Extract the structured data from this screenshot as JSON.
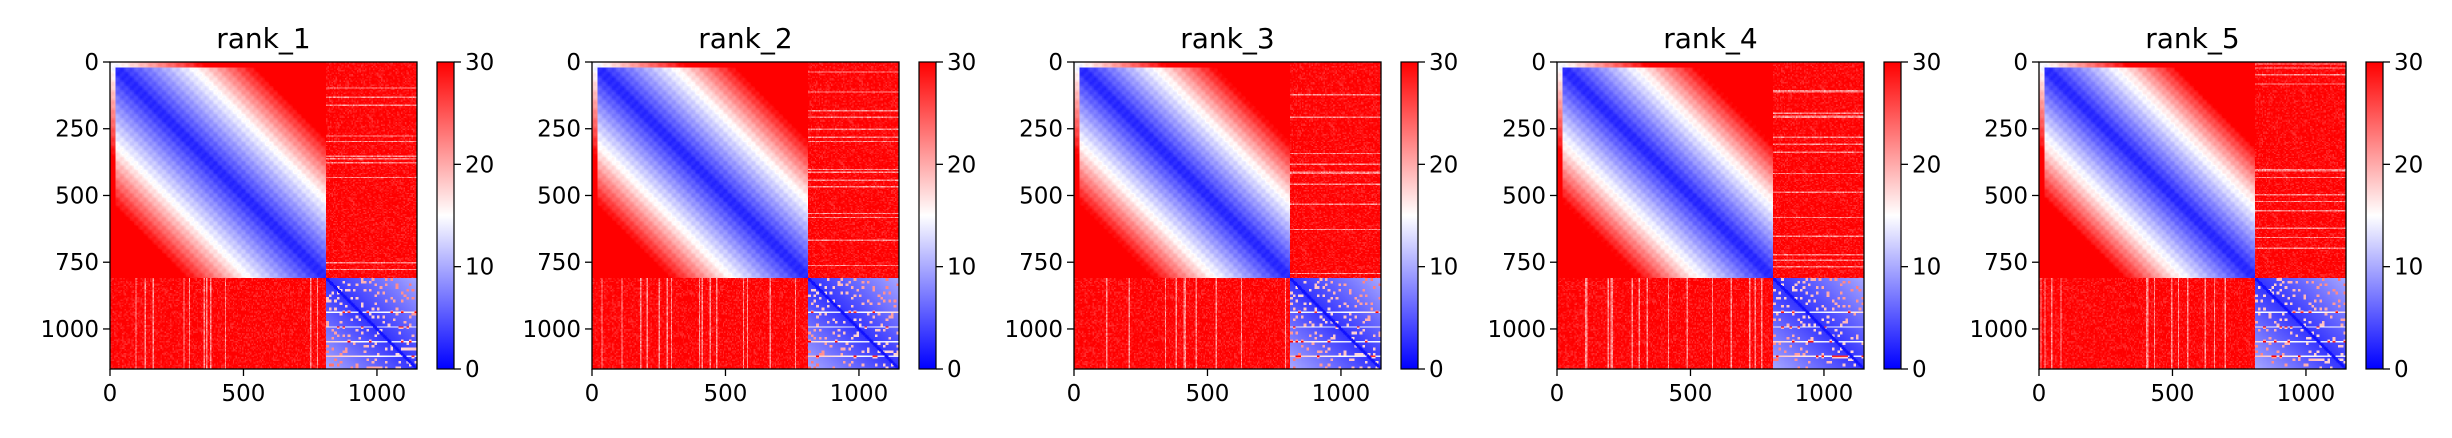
{
  "figure": {
    "panel_titles": [
      "rank_1",
      "rank_2",
      "rank_3",
      "rank_4",
      "rank_5"
    ]
  },
  "chart_data": [
    {
      "type": "heatmap",
      "title": "rank_1",
      "x_ticks": [
        0,
        500,
        1000
      ],
      "y_ticks": [
        0,
        250,
        500,
        750,
        1000
      ],
      "x_range": [
        0,
        1150
      ],
      "y_range": [
        0,
        1150
      ],
      "matrix_size": 1150,
      "block_boundary": 810,
      "colorbar": {
        "min": 0,
        "max": 30,
        "ticks": [
          0,
          10,
          20,
          30
        ],
        "colormap": "bwr"
      },
      "structure": "low distance within first block (0-810) growing away from diagonal, high distance between blocks, low values within second block (810-1150)"
    },
    {
      "type": "heatmap",
      "title": "rank_2",
      "x_ticks": [
        0,
        500,
        1000
      ],
      "y_ticks": [
        0,
        250,
        500,
        750,
        1000
      ],
      "x_range": [
        0,
        1150
      ],
      "y_range": [
        0,
        1150
      ],
      "matrix_size": 1150,
      "block_boundary": 810,
      "colorbar": {
        "min": 0,
        "max": 30,
        "ticks": [
          0,
          10,
          20,
          30
        ],
        "colormap": "bwr"
      },
      "structure": "low distance within first block (0-810) growing away from diagonal, high distance between blocks, low values within second block (810-1150)"
    },
    {
      "type": "heatmap",
      "title": "rank_3",
      "x_ticks": [
        0,
        500,
        1000
      ],
      "y_ticks": [
        0,
        250,
        500,
        750,
        1000
      ],
      "x_range": [
        0,
        1150
      ],
      "y_range": [
        0,
        1150
      ],
      "matrix_size": 1150,
      "block_boundary": 810,
      "colorbar": {
        "min": 0,
        "max": 30,
        "ticks": [
          0,
          10,
          20,
          30
        ],
        "colormap": "bwr"
      },
      "structure": "low distance within first block (0-810) growing away from diagonal, high distance between blocks, low values within second block (810-1150)"
    },
    {
      "type": "heatmap",
      "title": "rank_4",
      "x_ticks": [
        0,
        500,
        1000
      ],
      "y_ticks": [
        0,
        250,
        500,
        750,
        1000
      ],
      "x_range": [
        0,
        1150
      ],
      "y_range": [
        0,
        1150
      ],
      "matrix_size": 1150,
      "block_boundary": 810,
      "colorbar": {
        "min": 0,
        "max": 30,
        "ticks": [
          0,
          10,
          20,
          30
        ],
        "colormap": "bwr"
      },
      "structure": "low distance within first block (0-810) growing away from diagonal, high distance between blocks, low values within second block (810-1150)"
    },
    {
      "type": "heatmap",
      "title": "rank_5",
      "x_ticks": [
        0,
        500,
        1000
      ],
      "y_ticks": [
        0,
        250,
        500,
        750,
        1000
      ],
      "x_range": [
        0,
        1150
      ],
      "y_range": [
        0,
        1150
      ],
      "matrix_size": 1150,
      "block_boundary": 810,
      "colorbar": {
        "min": 0,
        "max": 30,
        "ticks": [
          0,
          10,
          20,
          30
        ],
        "colormap": "bwr"
      },
      "structure": "low distance within first block (0-810) growing away from diagonal, high distance between blocks, low values within second block (810-1150)"
    }
  ]
}
